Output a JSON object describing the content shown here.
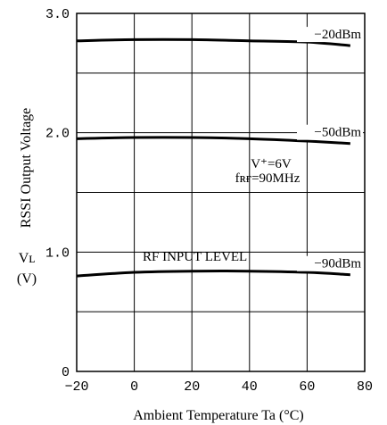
{
  "chart_data": {
    "type": "line",
    "title": "",
    "xlabel": "Ambient Temperature  Ta (°C)",
    "ylabel_lines": [
      "RSSI Output Voltage",
      "Vʟ",
      "(V)"
    ],
    "xlim": [
      -20,
      80
    ],
    "ylim": [
      0,
      3.0
    ],
    "xticks": [
      -20,
      0,
      20,
      40,
      60,
      80
    ],
    "xtick_labels": [
      "−20",
      "0",
      "20",
      "40",
      "60",
      "80"
    ],
    "yticks": [
      0,
      1.0,
      2.0,
      3.0
    ],
    "ytick_labels": [
      "0",
      "1.0",
      "2.0",
      "3.0"
    ],
    "grid": true,
    "series": [
      {
        "name": "−20dBm",
        "x": [
          -20,
          0,
          20,
          40,
          60,
          75
        ],
        "y": [
          2.77,
          2.78,
          2.78,
          2.77,
          2.76,
          2.73
        ]
      },
      {
        "name": "−50dBm",
        "x": [
          -20,
          0,
          20,
          40,
          60,
          75
        ],
        "y": [
          1.95,
          1.96,
          1.96,
          1.95,
          1.93,
          1.91
        ]
      },
      {
        "name": "−90dBm",
        "x": [
          -20,
          0,
          20,
          40,
          60,
          75
        ],
        "y": [
          0.8,
          0.83,
          0.84,
          0.84,
          0.83,
          0.81
        ]
      }
    ],
    "annotations": {
      "condition_v": "V⁺=6V",
      "condition_f": "fʀғ=90MHz",
      "rf_input": "RF INPUT LEVEL"
    }
  }
}
